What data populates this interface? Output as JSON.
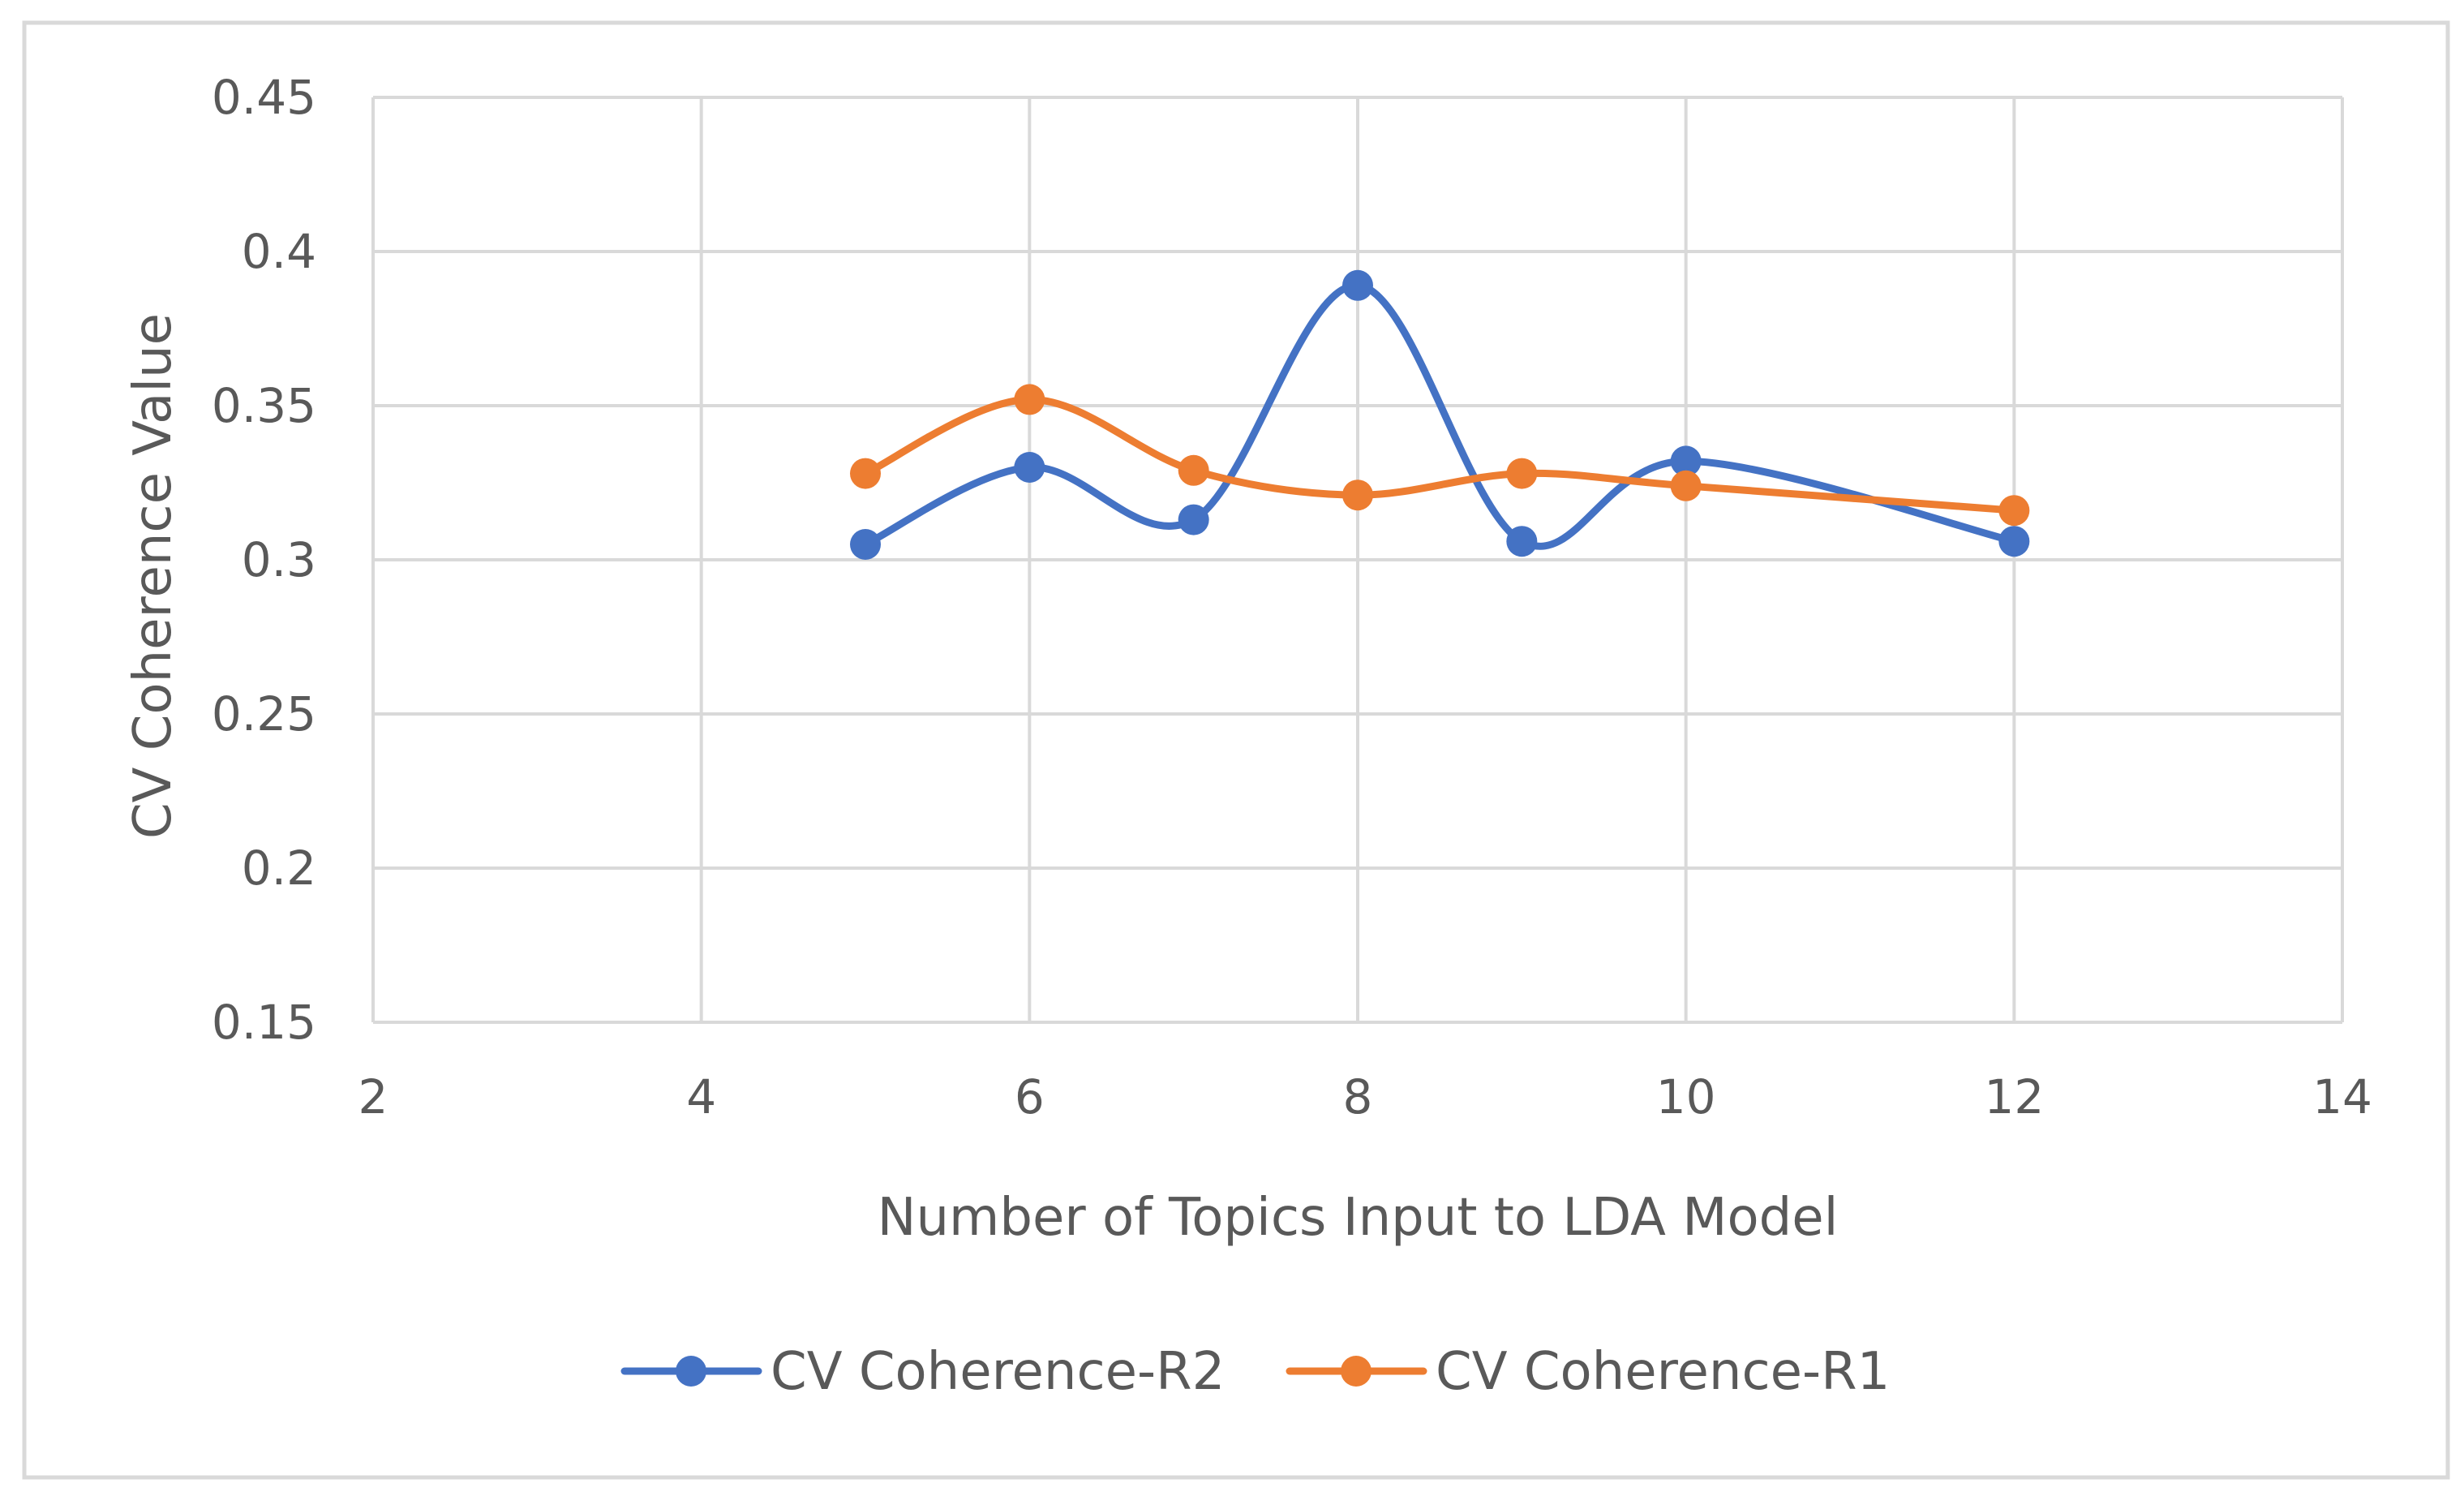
{
  "chart_data": {
    "type": "line",
    "smooth": true,
    "title": "",
    "xlabel": "Number of Topics Input to LDA Model",
    "ylabel": "CV Coherence Value",
    "xlim": [
      2,
      14
    ],
    "ylim": [
      0.15,
      0.45
    ],
    "xticks": [
      2,
      4,
      6,
      8,
      10,
      12,
      14
    ],
    "yticks": [
      0.15,
      0.2,
      0.25,
      0.3,
      0.35,
      0.4,
      0.45
    ],
    "xtick_labels": [
      "2",
      "4",
      "6",
      "8",
      "10",
      "12",
      "14"
    ],
    "ytick_labels": [
      "0.15",
      "0.2",
      "0.25",
      "0.3",
      "0.35",
      "0.4",
      "0.45"
    ],
    "grid": true,
    "legend_position": "bottom",
    "series": [
      {
        "name": "CV Coherence-R2",
        "color": "#4472C4",
        "x": [
          5,
          6,
          7,
          8,
          9,
          10,
          12
        ],
        "y": [
          0.305,
          0.33,
          0.313,
          0.389,
          0.306,
          0.332,
          0.306
        ]
      },
      {
        "name": "CV Coherence-R1",
        "color": "#ED7D31",
        "x": [
          5,
          6,
          7,
          8,
          9,
          10,
          12
        ],
        "y": [
          0.328,
          0.352,
          0.329,
          0.321,
          0.328,
          0.324,
          0.316
        ]
      }
    ]
  },
  "colors": {
    "grid": "#D9D9D9",
    "border": "#D9D9D9",
    "text": "#595959"
  }
}
